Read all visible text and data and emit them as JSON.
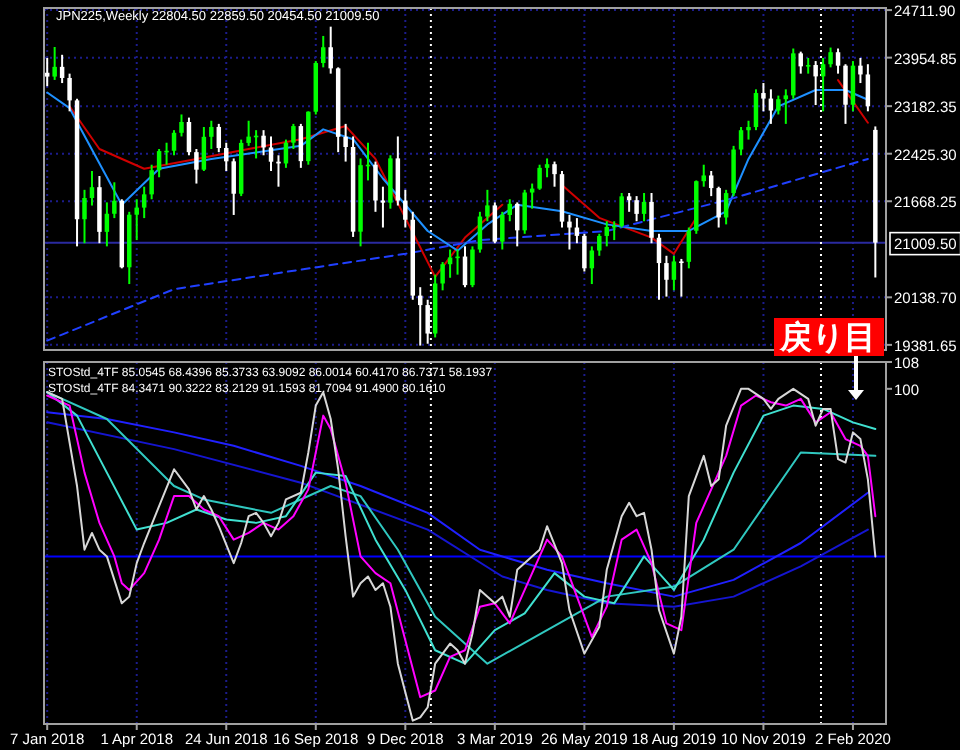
{
  "chart_data": [
    {
      "type": "candlestick",
      "title": "JPN225,Weekly 22804.50 22859.50 20454.50 21009.50",
      "x": [
        "2018-01-07",
        "2018-01-14",
        "2018-01-21",
        "2018-01-28",
        "2018-02-04",
        "2018-02-11",
        "2018-02-18",
        "2018-02-25",
        "2018-03-04",
        "2018-03-11",
        "2018-03-18",
        "2018-03-25",
        "2018-04-01",
        "2018-04-08",
        "2018-04-15",
        "2018-04-22",
        "2018-04-29",
        "2018-05-06",
        "2018-05-13",
        "2018-05-20",
        "2018-05-27",
        "2018-06-03",
        "2018-06-10",
        "2018-06-17",
        "2018-06-24",
        "2018-07-01",
        "2018-07-08",
        "2018-07-15",
        "2018-07-22",
        "2018-07-29",
        "2018-08-05",
        "2018-08-12",
        "2018-08-19",
        "2018-08-26",
        "2018-09-02",
        "2018-09-09",
        "2018-09-16",
        "2018-09-23",
        "2018-09-30",
        "2018-10-07",
        "2018-10-14",
        "2018-10-21",
        "2018-10-28",
        "2018-11-04",
        "2018-11-11",
        "2018-11-18",
        "2018-11-25",
        "2018-12-02",
        "2018-12-09",
        "2018-12-16",
        "2018-12-23",
        "2018-12-30",
        "2019-01-06",
        "2019-01-13",
        "2019-01-20",
        "2019-01-27",
        "2019-02-03",
        "2019-02-10",
        "2019-02-17",
        "2019-02-24",
        "2019-03-03",
        "2019-03-10",
        "2019-03-17",
        "2019-03-24",
        "2019-03-31",
        "2019-04-07",
        "2019-04-14",
        "2019-04-21",
        "2019-04-28",
        "2019-05-05",
        "2019-05-12",
        "2019-05-19",
        "2019-05-26",
        "2019-06-02",
        "2019-06-09",
        "2019-06-16",
        "2019-06-23",
        "2019-06-30",
        "2019-07-07",
        "2019-07-14",
        "2019-07-21",
        "2019-07-28",
        "2019-08-04",
        "2019-08-11",
        "2019-08-18",
        "2019-08-25",
        "2019-09-01",
        "2019-09-08",
        "2019-09-15",
        "2019-09-22",
        "2019-09-29",
        "2019-10-06",
        "2019-10-13",
        "2019-10-20",
        "2019-10-27",
        "2019-11-03",
        "2019-11-10",
        "2019-11-17",
        "2019-11-24",
        "2019-12-01",
        "2019-12-08",
        "2019-12-15",
        "2019-12-22",
        "2019-12-29",
        "2020-01-05",
        "2020-01-12",
        "2020-01-19",
        "2020-01-26",
        "2020-02-02",
        "2020-02-09",
        "2020-02-16",
        "2020-02-23"
      ],
      "ohlc": [
        [
          23714,
          23950,
          23500,
          23653
        ],
        [
          23653,
          24124,
          23600,
          23808
        ],
        [
          23808,
          24000,
          23550,
          23631
        ],
        [
          23631,
          23700,
          23100,
          23274
        ],
        [
          23274,
          23300,
          20950,
          21382
        ],
        [
          21382,
          21850,
          21000,
          21720
        ],
        [
          21720,
          22150,
          21600,
          21892
        ],
        [
          21892,
          22070,
          21000,
          21181
        ],
        [
          21181,
          21650,
          20950,
          21469
        ],
        [
          21469,
          21970,
          21400,
          21676
        ],
        [
          21676,
          21700,
          20600,
          20617
        ],
        [
          20617,
          21500,
          20350,
          21454
        ],
        [
          21454,
          21700,
          21050,
          21567
        ],
        [
          21567,
          21900,
          21400,
          21778
        ],
        [
          21778,
          22250,
          21700,
          22162
        ],
        [
          22162,
          22500,
          22050,
          22467
        ],
        [
          22467,
          22600,
          22250,
          22472
        ],
        [
          22472,
          22800,
          22400,
          22758
        ],
        [
          22758,
          23050,
          22700,
          22930
        ],
        [
          22930,
          23000,
          22400,
          22450
        ],
        [
          22450,
          22500,
          21950,
          22171
        ],
        [
          22171,
          22850,
          22150,
          22694
        ],
        [
          22694,
          22950,
          22500,
          22851
        ],
        [
          22851,
          22900,
          22450,
          22516
        ],
        [
          22516,
          22600,
          22150,
          22304
        ],
        [
          22304,
          22350,
          21450,
          21788
        ],
        [
          21788,
          22650,
          21750,
          22597
        ],
        [
          22597,
          22950,
          22550,
          22697
        ],
        [
          22697,
          22800,
          22350,
          22712
        ],
        [
          22712,
          22800,
          22400,
          22525
        ],
        [
          22525,
          22700,
          22150,
          22298
        ],
        [
          22298,
          22400,
          21900,
          22270
        ],
        [
          22270,
          22650,
          22200,
          22601
        ],
        [
          22601,
          22900,
          22500,
          22865
        ],
        [
          22865,
          22900,
          22200,
          22307
        ],
        [
          22307,
          23100,
          22250,
          23094
        ],
        [
          23094,
          23900,
          23050,
          23869
        ],
        [
          23869,
          24300,
          23800,
          24120
        ],
        [
          24120,
          24448,
          23700,
          23784
        ],
        [
          23784,
          23800,
          22450,
          22694
        ],
        [
          22694,
          22900,
          22300,
          22532
        ],
        [
          22532,
          22700,
          21100,
          21184
        ],
        [
          21184,
          22350,
          20950,
          22243
        ],
        [
          22243,
          22600,
          22000,
          22250
        ],
        [
          22250,
          22300,
          21500,
          21680
        ],
        [
          21680,
          21900,
          21250,
          21646
        ],
        [
          21646,
          22400,
          21550,
          22351
        ],
        [
          22351,
          22700,
          21600,
          21679
        ],
        [
          21679,
          21850,
          21250,
          21374
        ],
        [
          21374,
          21500,
          20100,
          20166
        ],
        [
          20166,
          20300,
          19370,
          20015
        ],
        [
          20015,
          20100,
          19400,
          19562
        ],
        [
          19562,
          20500,
          19500,
          20359
        ],
        [
          20359,
          20700,
          20250,
          20666
        ],
        [
          20666,
          20900,
          20450,
          20773
        ],
        [
          20773,
          20900,
          20500,
          20788
        ],
        [
          20788,
          20950,
          20300,
          20333
        ],
        [
          20333,
          20950,
          20300,
          20900
        ],
        [
          20900,
          21500,
          20850,
          21425
        ],
        [
          21425,
          21850,
          21350,
          21602
        ],
        [
          21602,
          21650,
          21000,
          21025
        ],
        [
          21025,
          21500,
          20900,
          21450
        ],
        [
          21450,
          21700,
          21350,
          21627
        ],
        [
          21627,
          21650,
          20950,
          21205
        ],
        [
          21205,
          21850,
          21150,
          21807
        ],
        [
          21807,
          21950,
          21550,
          21870
        ],
        [
          21870,
          22250,
          21850,
          22200
        ],
        [
          22200,
          22350,
          22050,
          22258
        ],
        [
          22258,
          22300,
          21900,
          22100
        ],
        [
          22100,
          22150,
          21250,
          21344
        ],
        [
          21344,
          21450,
          20900,
          21250
        ],
        [
          21250,
          21400,
          21000,
          21117
        ],
        [
          21117,
          21150,
          20550,
          20601
        ],
        [
          20601,
          20950,
          20350,
          20884
        ],
        [
          20884,
          21150,
          20800,
          21116
        ],
        [
          21116,
          21350,
          20950,
          21258
        ],
        [
          21258,
          21350,
          21050,
          21276
        ],
        [
          21276,
          21800,
          21250,
          21746
        ],
        [
          21746,
          21800,
          21500,
          21685
        ],
        [
          21685,
          21750,
          21350,
          21467
        ],
        [
          21467,
          21800,
          21350,
          21658
        ],
        [
          21658,
          21800,
          21000,
          21087
        ],
        [
          21087,
          21150,
          20100,
          20684
        ],
        [
          20684,
          20800,
          20150,
          20418
        ],
        [
          20418,
          20800,
          20250,
          20710
        ],
        [
          20710,
          20750,
          20150,
          20704
        ],
        [
          20704,
          21250,
          20600,
          21199
        ],
        [
          21199,
          22000,
          21150,
          21988
        ],
        [
          21988,
          22250,
          21900,
          22079
        ],
        [
          22079,
          22150,
          21750,
          21878
        ],
        [
          21878,
          21900,
          21250,
          21410
        ],
        [
          21410,
          21850,
          21300,
          21798
        ],
        [
          21798,
          22550,
          21750,
          22492
        ],
        [
          22492,
          22850,
          22400,
          22799
        ],
        [
          22799,
          22950,
          22650,
          22850
        ],
        [
          22850,
          23450,
          22800,
          23391
        ],
        [
          23391,
          23550,
          23100,
          23303
        ],
        [
          23303,
          23450,
          22900,
          23112
        ],
        [
          23112,
          23350,
          23050,
          23293
        ],
        [
          23293,
          23450,
          22900,
          23354
        ],
        [
          23354,
          24100,
          23300,
          24023
        ],
        [
          24023,
          24050,
          23700,
          23816
        ],
        [
          23816,
          23950,
          23700,
          23837
        ],
        [
          23837,
          23900,
          23200,
          23656
        ],
        [
          23656,
          23950,
          23100,
          23850
        ],
        [
          23850,
          24115,
          23800,
          24041
        ],
        [
          24041,
          24100,
          23700,
          23827
        ],
        [
          23827,
          23850,
          22900,
          23205
        ],
        [
          23205,
          23900,
          23100,
          23827
        ],
        [
          23827,
          23950,
          23550,
          23687
        ],
        [
          23687,
          23850,
          23100,
          23180
        ],
        [
          22804.5,
          22859.5,
          20454.5,
          21009.5
        ]
      ],
      "series": [
        {
          "type": "line",
          "color": "#d00000",
          "x": [
            "2018-01-28",
            "2018-02-25",
            "2018-04-08",
            "2018-05-27",
            "2018-07-15",
            "2018-09-02",
            "2018-10-14",
            "2018-11-11",
            "2018-12-09",
            "2019-01-06",
            "2019-02-03",
            "2019-03-10",
            "2019-03-31",
            "2019-05-05",
            "2019-06-09",
            "2019-07-28",
            "2019-08-18",
            "2019-09-08",
            "2019-11-10",
            "2020-01-19",
            "2020-02-16"
          ],
          "values": [
            23180,
            22500,
            22186,
            22342,
            22500,
            22656,
            22865,
            22342,
            21404,
            20464,
            21090,
            21613,
            null,
            21926,
            21404,
            21090,
            20831,
            21404,
            null,
            23596,
            22918
          ]
        },
        {
          "type": "line",
          "color": "#1e90ff",
          "x": [
            "2018-01-07",
            "2018-01-28",
            "2018-03-18",
            "2018-04-22",
            "2018-06-10",
            "2018-07-22",
            "2018-09-02",
            "2018-09-23",
            "2018-10-21",
            "2018-11-18",
            "2018-12-30",
            "2019-01-27",
            "2019-02-24",
            "2019-03-24",
            "2019-05-05",
            "2019-06-16",
            "2019-07-28",
            "2019-09-01",
            "2019-10-06",
            "2019-10-27",
            "2019-11-24",
            "2019-12-29",
            "2020-01-26",
            "2020-02-16"
          ],
          "values": [
            23400,
            23150,
            21613,
            22186,
            22342,
            22446,
            22550,
            22813,
            22656,
            22030,
            21195,
            20882,
            21300,
            21613,
            21509,
            21300,
            21195,
            21195,
            21509,
            22342,
            23180,
            23440,
            23440,
            23284
          ]
        },
        {
          "type": "line",
          "color": "#2040ff",
          "line_style": "dashed",
          "x": [
            "2018-01-07",
            "2018-05-06",
            "2018-09-02",
            "2018-12-09",
            "2019-02-17",
            "2019-06-16",
            "2019-10-13",
            "2020-02-16"
          ],
          "values": [
            19450,
            20268,
            20580,
            20831,
            21048,
            21195,
            21718,
            22342
          ]
        }
      ],
      "xlim": [
        "2018-01-04",
        "2020-03-04"
      ],
      "ylim": [
        19300,
        24745
      ],
      "xticks": [
        {
          "value": "2018-01-07",
          "label": null
        },
        {
          "value": "2018-04-01",
          "label": null
        },
        {
          "value": "2018-06-24",
          "label": null
        },
        {
          "value": "2018-09-16",
          "label": null
        },
        {
          "value": "2018-12-09",
          "label": null
        },
        {
          "value": "2019-03-03",
          "label": null
        },
        {
          "value": "2019-05-26",
          "label": null
        },
        {
          "value": "2019-08-18",
          "label": null
        },
        {
          "value": "2019-11-10",
          "label": null
        },
        {
          "value": "2020-02-02",
          "label": null
        }
      ],
      "yticks": [
        {
          "value": 24711.9,
          "label": "24711.90"
        },
        {
          "value": 23954.85,
          "label": "23954.85"
        },
        {
          "value": 23182.35,
          "label": "23182.35"
        },
        {
          "value": 22425.3,
          "label": "22425.30"
        },
        {
          "value": 21668.25,
          "label": "21668.25"
        },
        {
          "value": 20138.7,
          "label": "20138.70"
        },
        {
          "value": 19381.65,
          "label": "19381.65"
        }
      ],
      "grid": true,
      "tick_labels": "y",
      "ref_lines": [
        {
          "axis": "y",
          "value": 21009.5,
          "label": "21009.50",
          "color": "#2a2aa0"
        },
        {
          "axis": "x",
          "value": "2019-01-02",
          "color": "#ffffff",
          "line_style": "dotted"
        },
        {
          "axis": "x",
          "value": "2020-01-03",
          "color": "#ffffff",
          "line_style": "dotted"
        }
      ]
    },
    {
      "type": "line",
      "annotations": [
        "STOStd_4TF 85.0545 68.4396 85.3733 63.9092 86.0014 60.4170 86.7371 58.1937",
        "STOStd_4TF 84.3471 90.3222 83.2129 91.1593 81.7094 91.4900 80.1610",
        "戻り目"
      ],
      "series": [
        {
          "color": "#2020ff",
          "x": [
            "2018-01-07",
            "2018-03-04",
            "2018-05-06",
            "2018-07-01",
            "2018-09-02",
            "2018-10-28",
            "2018-12-30",
            "2019-02-17",
            "2019-04-21",
            "2019-06-16",
            "2019-08-18",
            "2019-10-13",
            "2019-12-15",
            "2020-02-16"
          ],
          "values": [
            93,
            91,
            87,
            83,
            77,
            71,
            63,
            52,
            46,
            42,
            38,
            43,
            54,
            69
          ]
        },
        {
          "color": "#1515d0",
          "x": [
            "2018-01-07",
            "2018-05-06",
            "2018-09-02",
            "2018-12-30",
            "2019-03-10",
            "2019-04-21",
            "2019-06-16",
            "2019-08-18",
            "2019-10-13",
            "2019-12-15",
            "2020-02-16"
          ],
          "values": [
            90,
            82,
            72,
            58,
            44,
            40,
            36,
            35,
            38,
            47,
            58
          ]
        },
        {
          "color": "#30c8c0",
          "x": [
            "2018-01-07",
            "2018-03-04",
            "2018-05-06",
            "2018-06-03",
            "2018-08-05",
            "2018-09-30",
            "2018-10-28",
            "2018-12-02",
            "2019-01-06",
            "2019-02-24",
            "2019-04-21",
            "2019-06-16",
            "2019-08-18",
            "2019-10-13",
            "2019-12-15",
            "2020-02-23"
          ],
          "values": [
            99,
            91,
            71,
            67,
            63,
            71,
            68,
            52,
            32,
            18,
            28,
            38,
            41,
            52,
            81,
            80
          ]
        },
        {
          "color": "#40e0d0",
          "x": [
            "2018-01-07",
            "2018-02-04",
            "2018-03-04",
            "2018-04-01",
            "2018-04-29",
            "2018-05-27",
            "2018-06-24",
            "2018-07-22",
            "2018-08-19",
            "2018-09-16",
            "2018-10-14",
            "2018-11-11",
            "2018-12-09",
            "2019-01-06",
            "2019-02-03",
            "2019-03-03",
            "2019-03-31",
            "2019-04-28",
            "2019-05-26",
            "2019-06-23",
            "2019-07-21",
            "2019-08-18",
            "2019-09-15",
            "2019-10-13",
            "2019-11-10",
            "2019-12-08",
            "2020-01-05",
            "2020-02-02",
            "2020-02-23"
          ],
          "values": [
            99,
            92,
            75,
            58,
            60,
            64,
            61,
            60,
            62,
            75,
            74,
            55,
            40,
            22,
            18,
            28,
            33,
            45,
            38,
            36,
            50,
            40,
            55,
            75,
            92,
            95,
            94,
            90,
            88
          ]
        },
        {
          "color": "#ff00ff",
          "x": [
            "2018-01-07",
            "2018-01-28",
            "2018-02-11",
            "2018-02-25",
            "2018-03-11",
            "2018-03-18",
            "2018-03-25",
            "2018-04-08",
            "2018-04-22",
            "2018-05-06",
            "2018-05-20",
            "2018-06-03",
            "2018-06-17",
            "2018-07-01",
            "2018-07-15",
            "2018-07-29",
            "2018-08-12",
            "2018-08-26",
            "2018-09-09",
            "2018-09-23",
            "2018-09-30",
            "2018-10-14",
            "2018-10-28",
            "2018-11-11",
            "2018-11-25",
            "2018-12-09",
            "2018-12-23",
            "2019-01-06",
            "2019-01-20",
            "2019-02-03",
            "2019-02-17",
            "2019-03-03",
            "2019-03-17",
            "2019-03-31",
            "2019-04-14",
            "2019-04-21",
            "2019-05-05",
            "2019-05-19",
            "2019-06-02",
            "2019-06-16",
            "2019-06-30",
            "2019-07-14",
            "2019-07-28",
            "2019-08-11",
            "2019-08-25",
            "2019-09-08",
            "2019-09-22",
            "2019-10-06",
            "2019-10-20",
            "2019-11-03",
            "2019-11-17",
            "2019-12-01",
            "2019-12-15",
            "2019-12-29",
            "2020-01-12",
            "2020-01-26",
            "2020-02-09",
            "2020-02-16",
            "2020-02-23"
          ],
          "values": [
            98,
            95,
            75,
            60,
            50,
            42,
            40,
            45,
            55,
            68,
            68,
            64,
            62,
            55,
            57,
            60,
            58,
            62,
            70,
            92,
            88,
            72,
            50,
            45,
            42,
            25,
            8,
            10,
            20,
            22,
            35,
            36,
            30,
            40,
            50,
            55,
            50,
            38,
            26,
            35,
            55,
            58,
            48,
            30,
            28,
            60,
            70,
            80,
            95,
            98,
            96,
            95,
            97,
            90,
            93,
            85,
            83,
            80,
            62
          ]
        },
        {
          "color": "#d8d8d8",
          "x": [
            "2018-01-07",
            "2018-01-21",
            "2018-02-04",
            "2018-02-11",
            "2018-02-18",
            "2018-02-25",
            "2018-03-04",
            "2018-03-11",
            "2018-03-18",
            "2018-03-25",
            "2018-04-01",
            "2018-04-08",
            "2018-04-22",
            "2018-05-06",
            "2018-05-20",
            "2018-05-27",
            "2018-06-03",
            "2018-06-10",
            "2018-06-17",
            "2018-07-01",
            "2018-07-08",
            "2018-07-15",
            "2018-07-22",
            "2018-07-29",
            "2018-08-05",
            "2018-08-12",
            "2018-08-19",
            "2018-09-02",
            "2018-09-09",
            "2018-09-16",
            "2018-09-23",
            "2018-09-30",
            "2018-10-07",
            "2018-10-14",
            "2018-10-21",
            "2018-10-28",
            "2018-11-04",
            "2018-11-11",
            "2018-11-18",
            "2018-11-25",
            "2018-12-02",
            "2018-12-16",
            "2018-12-23",
            "2018-12-30",
            "2019-01-06",
            "2019-01-20",
            "2019-01-27",
            "2019-02-03",
            "2019-02-10",
            "2019-02-17",
            "2019-03-03",
            "2019-03-10",
            "2019-03-17",
            "2019-03-24",
            "2019-04-14",
            "2019-04-21",
            "2019-05-05",
            "2019-05-12",
            "2019-05-26",
            "2019-06-09",
            "2019-06-16",
            "2019-06-30",
            "2019-07-07",
            "2019-07-14",
            "2019-07-21",
            "2019-07-28",
            "2019-08-04",
            "2019-08-18",
            "2019-08-25",
            "2019-09-01",
            "2019-09-15",
            "2019-09-22",
            "2019-09-29",
            "2019-10-06",
            "2019-10-20",
            "2019-10-27",
            "2019-11-10",
            "2019-11-17",
            "2019-11-24",
            "2019-12-08",
            "2019-12-22",
            "2019-12-29",
            "2020-01-05",
            "2020-01-12",
            "2020-01-19",
            "2020-01-26",
            "2020-02-02",
            "2020-02-09",
            "2020-02-16",
            "2020-02-23"
          ],
          "values": [
            99,
            97,
            71,
            52,
            57,
            52,
            50,
            43,
            36,
            38,
            48,
            54,
            65,
            76,
            70,
            64,
            68,
            64,
            59,
            48,
            54,
            62,
            63,
            60,
            56,
            60,
            67,
            69,
            81,
            95,
            99,
            91,
            76,
            56,
            38,
            42,
            44,
            40,
            42,
            35,
            18,
            1,
            2,
            5,
            18,
            24,
            22,
            18,
            27,
            40,
            36,
            38,
            32,
            46,
            52,
            59,
            48,
            34,
            21,
            29,
            46,
            62,
            66,
            62,
            63,
            52,
            34,
            21,
            32,
            68,
            80,
            71,
            73,
            89,
            100,
            100,
            97,
            94,
            97,
            100,
            97,
            89,
            94,
            94,
            79,
            78,
            87,
            85,
            73,
            50
          ]
        }
      ],
      "xlim": [
        "2018-01-04",
        "2020-03-04"
      ],
      "ylim": [
        0,
        108
      ],
      "xticks": [
        {
          "value": "2018-01-07",
          "label": "7 Jan 2018"
        },
        {
          "value": "2018-04-01",
          "label": "1 Apr 2018"
        },
        {
          "value": "2018-06-24",
          "label": "24 Jun 2018"
        },
        {
          "value": "2018-09-16",
          "label": "16 Sep 2018"
        },
        {
          "value": "2018-12-09",
          "label": "9 Dec 2018"
        },
        {
          "value": "2019-03-03",
          "label": "3 Mar 2019"
        },
        {
          "value": "2019-05-26",
          "label": "26 May 2019"
        },
        {
          "value": "2019-08-18",
          "label": "18 Aug 2019"
        },
        {
          "value": "2019-11-10",
          "label": "10 Nov 2019"
        },
        {
          "value": "2020-02-02",
          "label": "2 Feb 2020"
        }
      ],
      "yticks": [
        100,
        108
      ],
      "grid": "x",
      "ref_lines": [
        {
          "axis": "y",
          "value": 50,
          "color": "#0000ff"
        },
        {
          "axis": "x",
          "value": "2019-01-02",
          "color": "#ffffff",
          "line_style": "dotted"
        },
        {
          "axis": "x",
          "value": "2020-01-03",
          "color": "#ffffff",
          "line_style": "dotted"
        }
      ]
    }
  ]
}
